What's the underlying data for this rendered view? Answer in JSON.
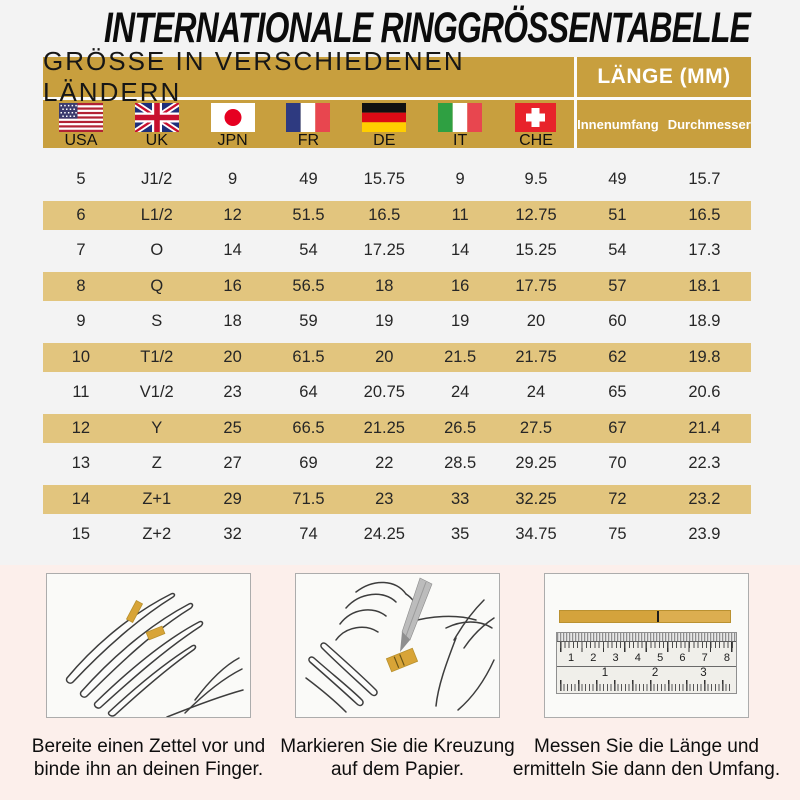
{
  "title": "INTERNATIONALE RINGGRÖSSENTABELLE",
  "table": {
    "header_left": "GRÖSSE IN VERSCHIEDENEN LÄNDERN",
    "header_right": "LÄNGE (MM)",
    "countries": [
      {
        "code": "USA"
      },
      {
        "code": "UK"
      },
      {
        "code": "JPN"
      },
      {
        "code": "FR"
      },
      {
        "code": "DE"
      },
      {
        "code": "IT"
      },
      {
        "code": "CHE"
      }
    ],
    "length_columns": [
      "Innenumfang",
      "Durchmesser"
    ],
    "rows": [
      [
        "5",
        "J1/2",
        "9",
        "49",
        "15.75",
        "9",
        "9.5",
        "49",
        "15.7"
      ],
      [
        "6",
        "L1/2",
        "12",
        "51.5",
        "16.5",
        "11",
        "12.75",
        "51",
        "16.5"
      ],
      [
        "7",
        "O",
        "14",
        "54",
        "17.25",
        "14",
        "15.25",
        "54",
        "17.3"
      ],
      [
        "8",
        "Q",
        "16",
        "56.5",
        "18",
        "16",
        "17.75",
        "57",
        "18.1"
      ],
      [
        "9",
        "S",
        "18",
        "59",
        "19",
        "19",
        "20",
        "60",
        "18.9"
      ],
      [
        "10",
        "T1/2",
        "20",
        "61.5",
        "20",
        "21.5",
        "21.75",
        "62",
        "19.8"
      ],
      [
        "11",
        "V1/2",
        "23",
        "64",
        "20.75",
        "24",
        "24",
        "65",
        "20.6"
      ],
      [
        "12",
        "Y",
        "25",
        "66.5",
        "21.25",
        "26.5",
        "27.5",
        "67",
        "21.4"
      ],
      [
        "13",
        "Z",
        "27",
        "69",
        "22",
        "28.5",
        "29.25",
        "70",
        "22.3"
      ],
      [
        "14",
        "Z+1",
        "29",
        "71.5",
        "23",
        "33",
        "32.25",
        "72",
        "23.2"
      ],
      [
        "15",
        "Z+2",
        "32",
        "74",
        "24.25",
        "35",
        "34.75",
        "75",
        "23.9"
      ]
    ]
  },
  "instructions": [
    {
      "caption_lines": [
        "Bereite einen Zettel vor und",
        "binde ihn an deinen Finger."
      ]
    },
    {
      "caption_lines": [
        "Markieren Sie die Kreuzung",
        "auf dem Papier."
      ]
    },
    {
      "caption_lines": [
        "Messen Sie die Länge und",
        "ermitteln Sie dann den Umfang."
      ]
    }
  ],
  "ruler": {
    "top_numbers": [
      "1",
      "2",
      "3",
      "4",
      "5",
      "6",
      "7",
      "8"
    ],
    "bottom_numbers": [
      "1",
      "2",
      "3"
    ]
  },
  "colors": {
    "gold": "#C89F3E",
    "row_highlight": "#E2C57E",
    "header_text_light": "#FFFFFF",
    "page_bg": "#F3F3F3",
    "bottom_bg": "#FCEFEB",
    "paper_strip": "#D8A437"
  }
}
